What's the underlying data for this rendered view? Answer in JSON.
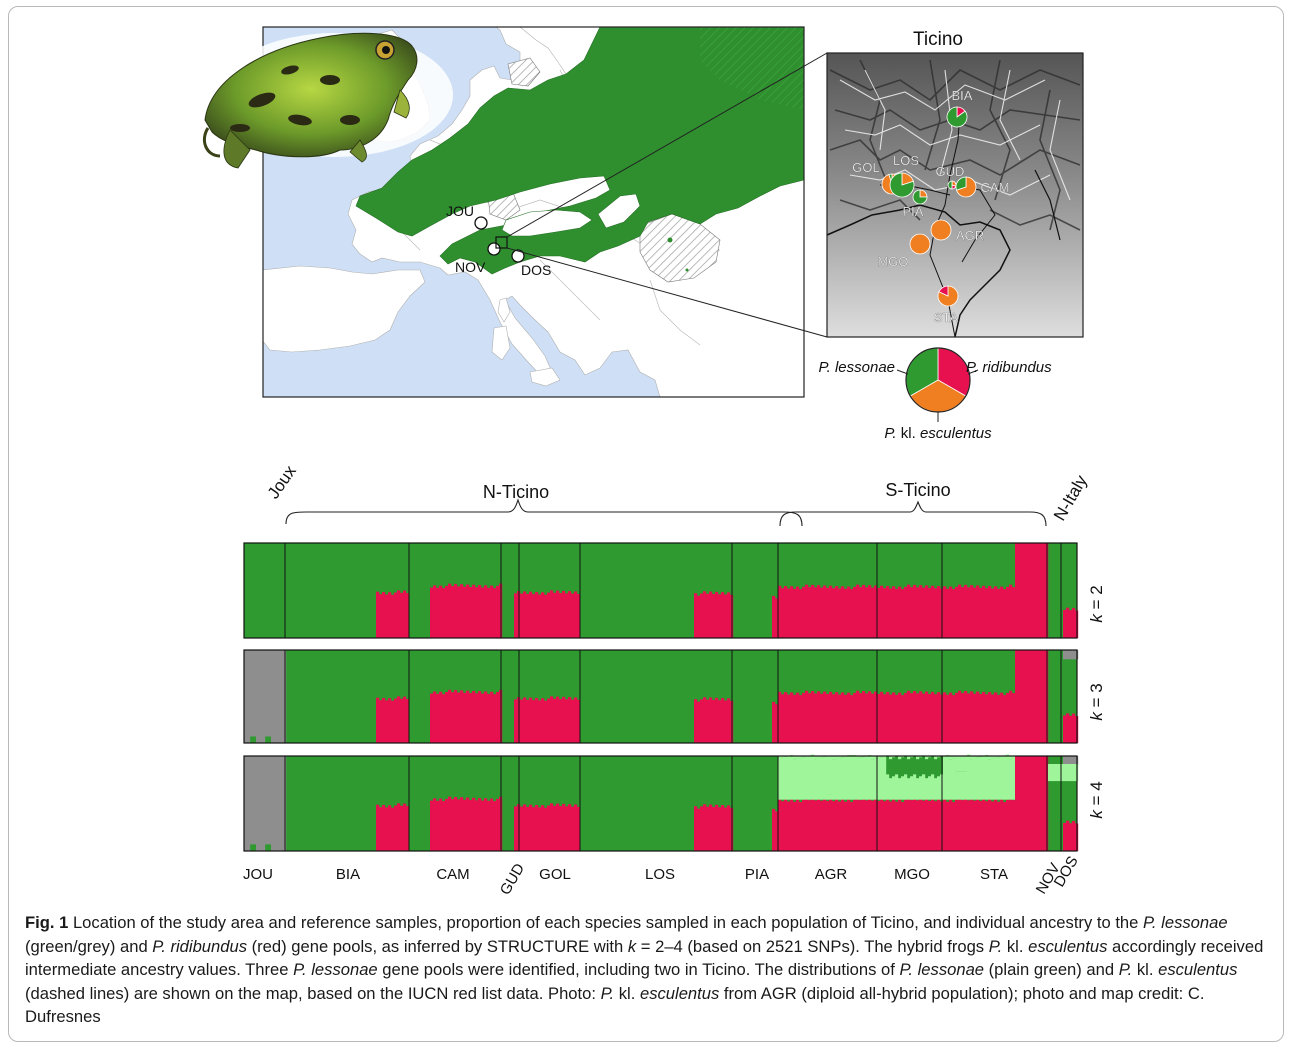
{
  "figure": {
    "map": {
      "sites": [
        {
          "label": "JOU"
        },
        {
          "label": "NOV"
        },
        {
          "label": "DOS"
        }
      ]
    },
    "inset": {
      "title": "Ticino",
      "populations": [
        {
          "label": "BIA",
          "lessonae": 0.85,
          "esculentus": 0.0,
          "ridibundus": 0.15,
          "size": "medium"
        },
        {
          "label": "GOL",
          "lessonae": 0.05,
          "esculentus": 0.95,
          "ridibundus": 0.0,
          "size": "medium"
        },
        {
          "label": "LOS",
          "lessonae": 0.8,
          "esculentus": 0.2,
          "ridibundus": 0.0,
          "size": "large"
        },
        {
          "label": "GUD",
          "lessonae": 0.5,
          "esculentus": 0.3,
          "ridibundus": 0.2,
          "size": "tiny"
        },
        {
          "label": "CAM",
          "lessonae": 0.3,
          "esculentus": 0.7,
          "ridibundus": 0.0,
          "size": "medium"
        },
        {
          "label": "PIA",
          "lessonae": 0.75,
          "esculentus": 0.25,
          "ridibundus": 0.0,
          "size": "small"
        },
        {
          "label": "AGR",
          "lessonae": 0.0,
          "esculentus": 1.0,
          "ridibundus": 0.0,
          "size": "medium"
        },
        {
          "label": "MGO",
          "lessonae": 0.0,
          "esculentus": 1.0,
          "ridibundus": 0.0,
          "size": "medium"
        },
        {
          "label": "STA",
          "lessonae": 0.0,
          "esculentus": 0.82,
          "ridibundus": 0.18,
          "size": "medium"
        }
      ]
    },
    "legend": {
      "lessonae_genus": "P.",
      "lessonae_species": "lessonae",
      "ridibundus_genus": "P.",
      "ridibundus_species": "ridibundus",
      "esculentus_genus": "P.",
      "esculentus_kl": "kl.",
      "esculentus_species": "esculentus"
    },
    "structure": {
      "groups": [
        "Joux",
        "N-Ticino",
        "S-Ticino",
        "N-Italy"
      ],
      "panel_labels": [
        "k = 2",
        "k = 3",
        "k = 4"
      ],
      "populations": [
        "JOU",
        "BIA",
        "CAM",
        "GUD",
        "GOL",
        "LOS",
        "PIA",
        "AGR",
        "MGO",
        "STA",
        "NOV",
        "DOS"
      ],
      "population_tick_labels": [
        "JOU",
        "BIA",
        "CAM",
        "GUD",
        "GOL",
        "LOS",
        "PIA",
        "AGR",
        "MGO",
        "STA",
        "NOV",
        "DOS"
      ]
    },
    "colors": {
      "lessonae_green": "#2e9a30",
      "ridibundus_red": "#e8114f",
      "esculentus_orange": "#f07f22",
      "lessonae_grey": "#8e8e8e",
      "lessonae_lightgreen": "#9ff59a",
      "sea": "#cfe0f6",
      "land": "#ffffff",
      "range_green": "#2f8f2f"
    }
  },
  "caption": {
    "label": "Fig. 1",
    "text_a": " Location of the study area and reference samples, proportion of each species sampled in each population of Ticino, and individual ancestry to the ",
    "it_a": "P. lessonae",
    "text_b": " (green/grey) and ",
    "it_b": "P. ridibundus",
    "text_c": " (red) gene pools, as inferred by STRUCTURE with ",
    "it_k": "k",
    "text_d": " = 2–4 (based on 2521 SNPs). The hybrid frogs ",
    "it_c1": "P.",
    "text_kl": " kl. ",
    "it_c2": "esculentus",
    "text_e": " accordingly received intermediate ancestry values. Three ",
    "it_d": "P. lessonae",
    "text_f": " gene pools were identified, including two in Ticino. The distributions of ",
    "it_e": "P. lessonae",
    "text_g": " (plain green) and ",
    "it_f1": "P.",
    "text_kl2": " kl. ",
    "it_f2": "esculentus",
    "text_h": " (dashed lines) are shown on the map, based on the IUCN red list data. Photo: ",
    "it_g1": "P.",
    "text_kl3": " kl. ",
    "it_g2": "esculentus",
    "text_i": " from AGR (diploid all-hybrid population); photo and map credit: C. Dufresnes"
  }
}
